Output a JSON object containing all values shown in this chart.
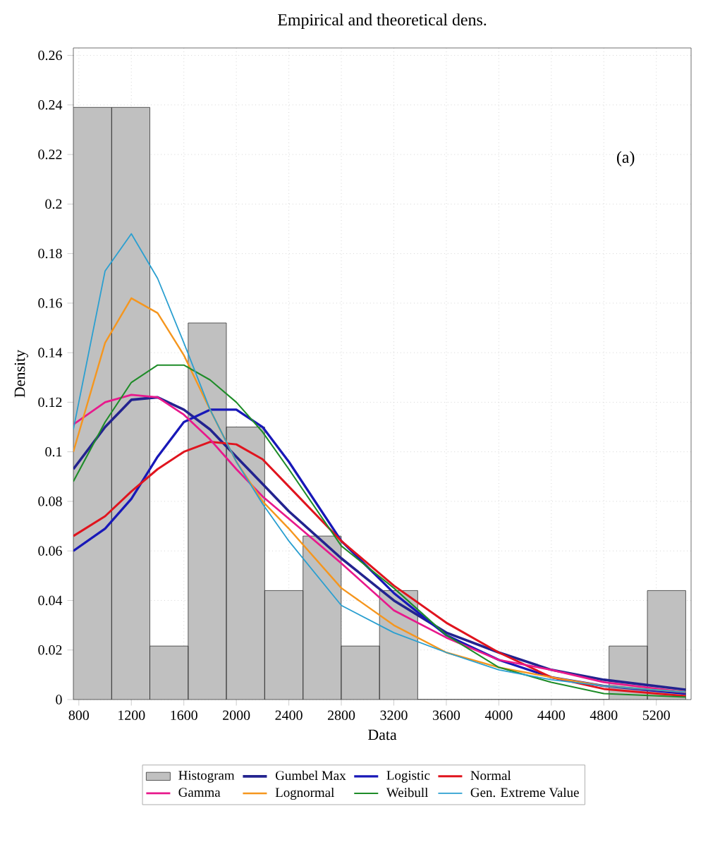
{
  "chart_data": {
    "type": "histogram",
    "title": "Empirical and theoretical dens.",
    "xlabel": "Data",
    "ylabel": "Density",
    "annotations": [
      "(a)"
    ],
    "xlim": [
      758,
      5465
    ],
    "ylim": [
      0,
      0.263
    ],
    "xticks": [
      800,
      1200,
      1600,
      2000,
      2400,
      2800,
      3200,
      3600,
      4000,
      4400,
      4800,
      5200
    ],
    "yticks": [
      0,
      0.02,
      0.04,
      0.06,
      0.08,
      0.1,
      0.12,
      0.14,
      0.16,
      0.18,
      0.2,
      0.22,
      0.24,
      0.26
    ],
    "grid": true,
    "legend": "bottom",
    "x": [
      758,
      1000,
      1200,
      1400,
      1600,
      1800,
      2000,
      2200,
      2400,
      2800,
      3200,
      3600,
      4000,
      4400,
      4800,
      5424
    ],
    "series": [
      {
        "name": "Histogram",
        "color": "#c0c0c0",
        "bins": [
          758,
          1050,
          1341,
          1633,
          1924,
          2216,
          2508,
          2799,
          3091,
          3382,
          3674,
          3966,
          4257,
          4549,
          4840,
          5132,
          5424
        ],
        "values": [
          0.239,
          0.239,
          0.0216,
          0.152,
          0.11,
          0.044,
          0.066,
          0.0216,
          0.044,
          0,
          0,
          0,
          0,
          0,
          0.0216,
          0.044
        ]
      },
      {
        "name": "Gumbel Max",
        "type": "line",
        "color": "#23238f",
        "values": [
          0.093,
          0.11,
          0.121,
          0.122,
          0.117,
          0.109,
          0.098,
          0.087,
          0.076,
          0.057,
          0.04,
          0.027,
          0.019,
          0.012,
          0.008,
          0.004
        ]
      },
      {
        "name": "Logistic",
        "type": "line",
        "color": "#1818b8",
        "values": [
          0.06,
          0.069,
          0.081,
          0.098,
          0.112,
          0.117,
          0.117,
          0.11,
          0.096,
          0.064,
          0.043,
          0.026,
          0.016,
          0.009,
          0.0055,
          0.0024
        ]
      },
      {
        "name": "Normal",
        "type": "line",
        "color": "#e0141e",
        "values": [
          0.066,
          0.074,
          0.084,
          0.093,
          0.1,
          0.104,
          0.103,
          0.097,
          0.086,
          0.064,
          0.046,
          0.031,
          0.019,
          0.009,
          0.0043,
          0.0014
        ]
      },
      {
        "name": "Gamma",
        "type": "line",
        "color": "#e8198c",
        "values": [
          0.111,
          0.12,
          0.123,
          0.122,
          0.115,
          0.105,
          0.093,
          0.082,
          0.073,
          0.055,
          0.036,
          0.025,
          0.016,
          0.012,
          0.007,
          0.003
        ]
      },
      {
        "name": "Lognormal",
        "type": "line",
        "color": "#f5961e",
        "values": [
          0.1,
          0.144,
          0.162,
          0.156,
          0.139,
          0.117,
          0.096,
          0.08,
          0.069,
          0.045,
          0.03,
          0.019,
          0.013,
          0.009,
          0.0055,
          0.003
        ]
      },
      {
        "name": "Weibull",
        "type": "line",
        "color": "#1e8c28",
        "values": [
          0.088,
          0.112,
          0.128,
          0.135,
          0.135,
          0.129,
          0.12,
          0.108,
          0.093,
          0.062,
          0.045,
          0.026,
          0.013,
          0.007,
          0.0024,
          0.001
        ]
      },
      {
        "name": "Gen. Extreme Value",
        "type": "line",
        "color": "#2a9fd0",
        "values": [
          0.109,
          0.173,
          0.188,
          0.17,
          0.144,
          0.117,
          0.096,
          0.079,
          0.064,
          0.038,
          0.027,
          0.019,
          0.012,
          0.008,
          0.0055,
          0.003
        ]
      }
    ]
  }
}
